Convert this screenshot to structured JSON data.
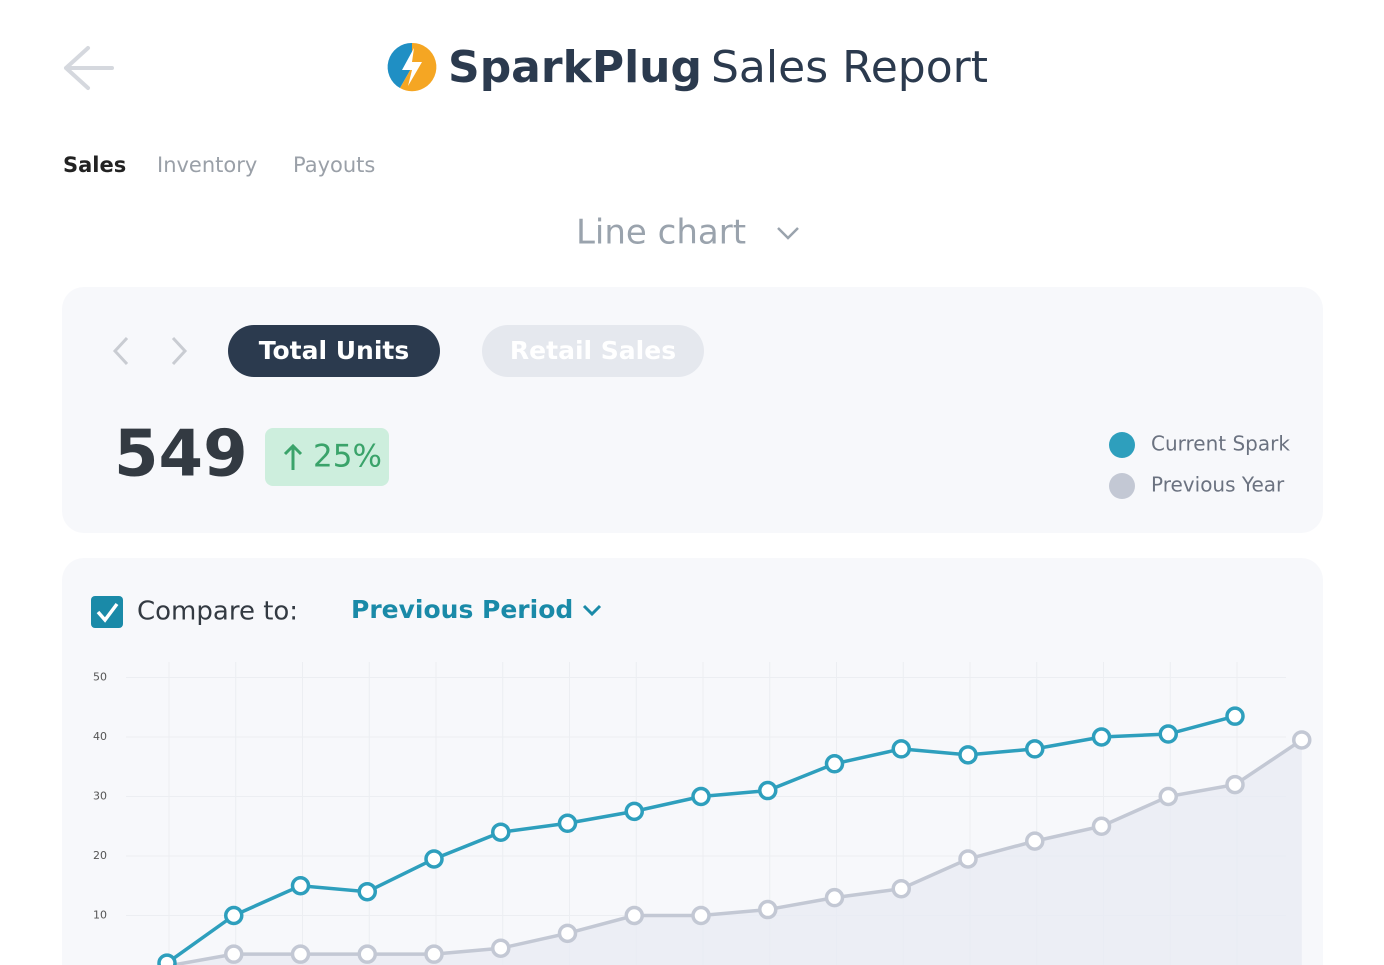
{
  "header": {
    "brand": "SparkPlug",
    "title": "Sales Report"
  },
  "tabs": [
    "Sales",
    "Inventory",
    "Payouts"
  ],
  "view_selector": "Line chart",
  "metric_toggles": [
    "Total Units",
    "Retail Sales"
  ],
  "metric": {
    "value": 549,
    "change": "25%"
  },
  "compare": {
    "label": "Compare to:",
    "option": "Previous Period"
  },
  "chart_data": {
    "type": "line",
    "categories": [
      null,
      null,
      null,
      null,
      null,
      null,
      null,
      null,
      null,
      null,
      null,
      null,
      null,
      null,
      null,
      null,
      null,
      null
    ],
    "series": [
      {
        "name": "Current Spark",
        "color": "#2e9fbd",
        "values": [
          2,
          10,
          15,
          14,
          19.5,
          24,
          25.5,
          27.5,
          30,
          31,
          35.5,
          38,
          37,
          38,
          40,
          40.5,
          43.5,
          null
        ]
      },
      {
        "name": "Previous Year",
        "color": "#c3c8d4",
        "values": [
          1.5,
          3.5,
          3.5,
          3.5,
          3.5,
          4.5,
          7,
          10,
          10,
          11,
          13,
          14.5,
          19.5,
          22.5,
          25,
          30,
          32,
          39.5
        ]
      }
    ],
    "ylim": [
      0,
      50
    ],
    "yticks": [
      10,
      20,
      30,
      40,
      50
    ],
    "grid": true
  }
}
